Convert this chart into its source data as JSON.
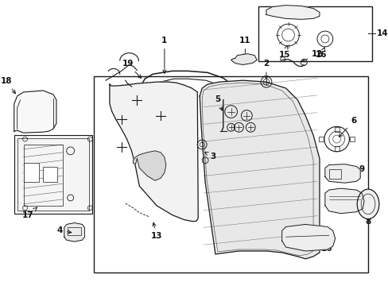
{
  "bg_color": "#ffffff",
  "fig_width": 4.89,
  "fig_height": 3.6,
  "dpi": 100,
  "line_color": "#1a1a1a",
  "text_color": "#111111",
  "font_size": 7.5
}
